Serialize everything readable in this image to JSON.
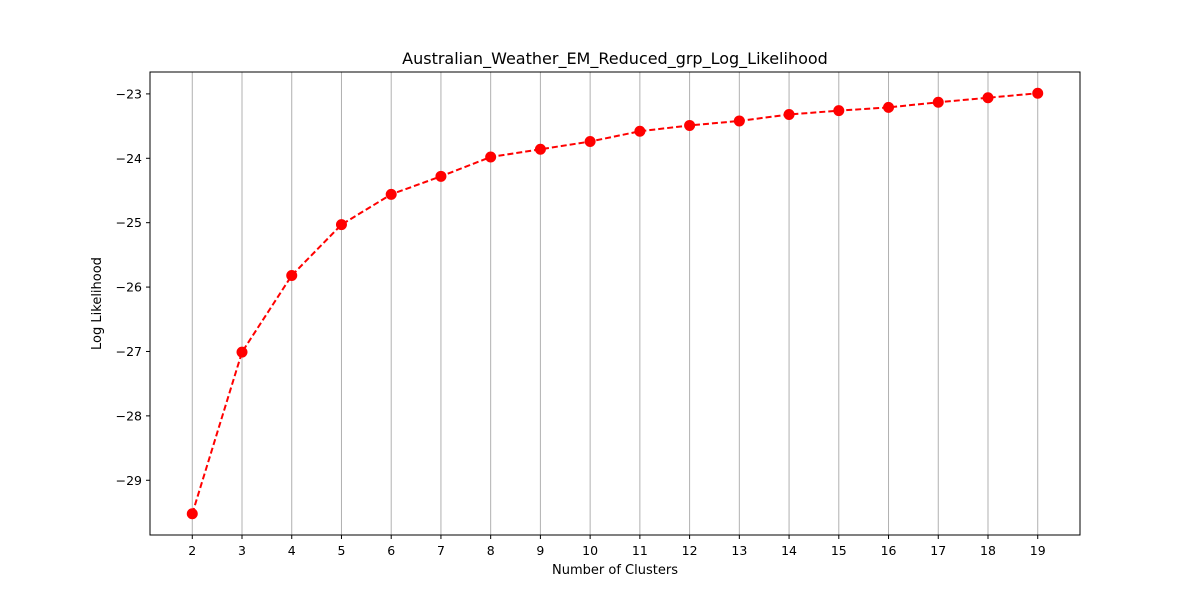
{
  "chart_data": {
    "type": "line",
    "title": "Australian_Weather_EM_Reduced_grp_Log_Likelihood",
    "xlabel": "Number of Clusters",
    "ylabel": "Log Likelihood",
    "x": [
      2,
      3,
      4,
      5,
      6,
      7,
      8,
      9,
      10,
      11,
      12,
      13,
      14,
      15,
      16,
      17,
      18,
      19
    ],
    "series": [
      {
        "values": [
          -29.52,
          -27.01,
          -25.82,
          -25.03,
          -24.56,
          -24.28,
          -23.98,
          -23.86,
          -23.74,
          -23.58,
          -23.49,
          -23.42,
          -23.32,
          -23.26,
          -23.21,
          -23.13,
          -23.06,
          -22.99
        ],
        "color": "#ff0000",
        "line_style": "dashed",
        "marker": "circle"
      }
    ],
    "xticks": [
      "2",
      "3",
      "4",
      "5",
      "6",
      "7",
      "8",
      "9",
      "10",
      "11",
      "12",
      "13",
      "14",
      "15",
      "16",
      "17",
      "18",
      "19"
    ],
    "yticks": [
      "−29",
      "−28",
      "−27",
      "−26",
      "−25",
      "−24",
      "−23"
    ],
    "xlim": [
      1.15,
      19.85
    ],
    "ylim": [
      -29.85,
      -22.66
    ],
    "grid": "vertical",
    "grid_color": "#b0b0b0"
  }
}
